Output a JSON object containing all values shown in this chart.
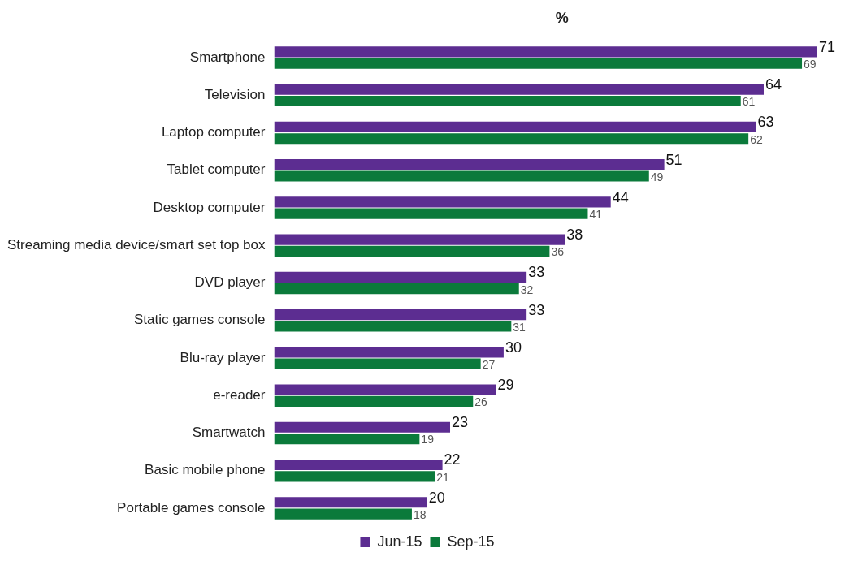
{
  "chart_data": {
    "type": "bar",
    "orientation": "horizontal",
    "title": "%",
    "categories": [
      "Smartphone",
      "Television",
      "Laptop computer",
      "Tablet computer",
      "Desktop computer",
      "Streaming media device/smart set top box",
      "DVD player",
      "Static games console",
      "Blu-ray player",
      "e-reader",
      "Smartwatch",
      "Basic mobile phone",
      "Portable games console"
    ],
    "series": [
      {
        "name": "Jun-15",
        "color": "#5c2d91",
        "values": [
          71,
          64,
          63,
          51,
          44,
          38,
          33,
          33,
          30,
          29,
          23,
          22,
          20
        ]
      },
      {
        "name": "Sep-15",
        "color": "#0b7a3b",
        "values": [
          69,
          61,
          62,
          49,
          41,
          36,
          32,
          31,
          27,
          26,
          19,
          21,
          18
        ]
      }
    ],
    "data_labels": true,
    "legend": "bottom"
  }
}
